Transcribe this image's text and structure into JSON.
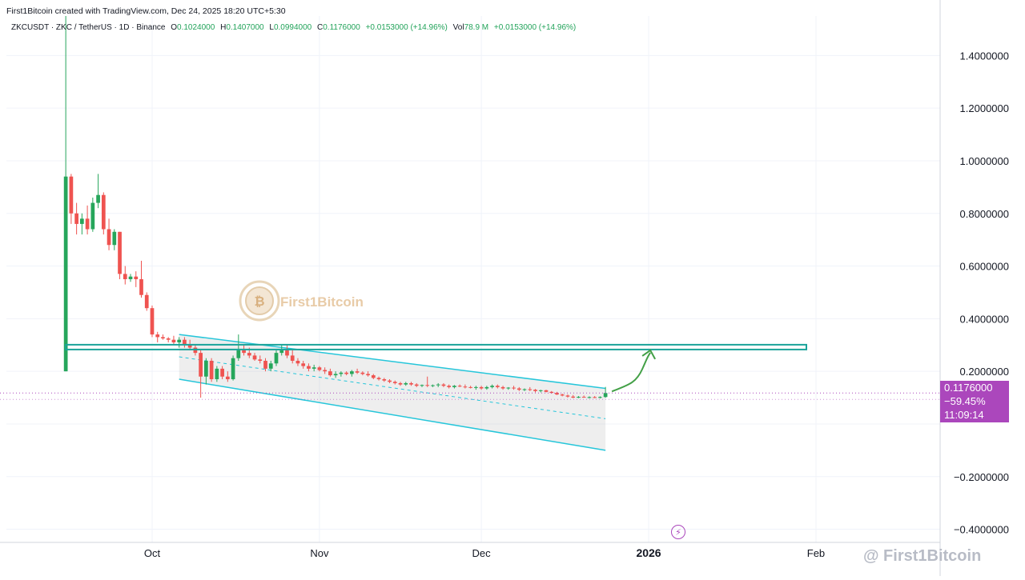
{
  "header": {
    "credit": "First1Bitcoin created with TradingView.com, Dec 24, 2025 18:20 UTC+5:30"
  },
  "symbol_bar": {
    "symbol": "ZKCUSDT · ZKC / TetherUS · 1D · Binance",
    "open_label": "O",
    "open": "0.1024000",
    "high_label": "H",
    "high": "0.1407000",
    "low_label": "L",
    "low": "0.0994000",
    "close_label": "C",
    "close": "0.1176000",
    "change": "+0.0153000 (+14.96%)",
    "vol_label": "Vol",
    "vol": "78.9 M",
    "vol_change": "+0.0153000 (+14.96%)"
  },
  "price_tag": {
    "price": "0.1176000",
    "pct": "−59.45%",
    "countdown": "11:09:14"
  },
  "watermark": {
    "logo_text": "First1Bitcoin",
    "footer": "@ First1Bitcoin"
  },
  "colors": {
    "up": "#26a65b",
    "down": "#ef5350",
    "channel": "#26c6da",
    "level": "#1aa39a",
    "arrow": "#43a047",
    "price_line": "#ab47bc"
  },
  "chart_data": {
    "type": "candlestick",
    "title": "ZKCUSDT · ZKC / TetherUS · 1D · Binance",
    "ylim": [
      -0.45,
      1.55
    ],
    "y_ticks": [
      1.4,
      1.2,
      1.0,
      0.8,
      0.6,
      0.4,
      0.2,
      -0.2,
      -0.4
    ],
    "y_tick_labels": [
      "1.4000000",
      "1.2000000",
      "1.0000000",
      "0.8000000",
      "0.6000000",
      "0.4000000",
      "0.2000000",
      "−0.2000000",
      "−0.4000000"
    ],
    "x_ticks": [
      "2025-10-01",
      "2025-11-01",
      "2025-12-01",
      "2026-01-01",
      "2026-02-01"
    ],
    "x_tick_labels": [
      "Oct",
      "Nov",
      "Dec",
      "2026",
      "Feb"
    ],
    "x_range": [
      "2025-09-04",
      "2026-02-24"
    ],
    "last_price": 0.1176,
    "support_level": 0.295,
    "channel": {
      "upper": [
        [
          "2025-10-06",
          0.34
        ],
        [
          "2025-12-24",
          0.135
        ]
      ],
      "lower": [
        [
          "2025-10-06",
          0.17
        ],
        [
          "2025-12-24",
          -0.1
        ]
      ],
      "mid": [
        [
          "2025-10-06",
          0.255
        ],
        [
          "2025-12-24",
          0.02
        ]
      ]
    },
    "candles": [
      {
        "t": "2025-09-15",
        "o": 0.2,
        "h": 1.55,
        "l": 0.2,
        "c": 0.94
      },
      {
        "t": "2025-09-16",
        "o": 0.94,
        "h": 0.95,
        "l": 0.76,
        "c": 0.8
      },
      {
        "t": "2025-09-17",
        "o": 0.8,
        "h": 0.84,
        "l": 0.72,
        "c": 0.76
      },
      {
        "t": "2025-09-18",
        "o": 0.76,
        "h": 0.8,
        "l": 0.72,
        "c": 0.78
      },
      {
        "t": "2025-09-19",
        "o": 0.78,
        "h": 0.83,
        "l": 0.72,
        "c": 0.74
      },
      {
        "t": "2025-09-20",
        "o": 0.74,
        "h": 0.86,
        "l": 0.73,
        "c": 0.84
      },
      {
        "t": "2025-09-21",
        "o": 0.84,
        "h": 0.95,
        "l": 0.82,
        "c": 0.87
      },
      {
        "t": "2025-09-22",
        "o": 0.87,
        "h": 0.88,
        "l": 0.72,
        "c": 0.74
      },
      {
        "t": "2025-09-23",
        "o": 0.74,
        "h": 0.78,
        "l": 0.66,
        "c": 0.68
      },
      {
        "t": "2025-09-24",
        "o": 0.68,
        "h": 0.74,
        "l": 0.66,
        "c": 0.73
      },
      {
        "t": "2025-09-25",
        "o": 0.73,
        "h": 0.73,
        "l": 0.55,
        "c": 0.57
      },
      {
        "t": "2025-09-26",
        "o": 0.57,
        "h": 0.6,
        "l": 0.53,
        "c": 0.55
      },
      {
        "t": "2025-09-27",
        "o": 0.55,
        "h": 0.57,
        "l": 0.54,
        "c": 0.56
      },
      {
        "t": "2025-09-28",
        "o": 0.56,
        "h": 0.58,
        "l": 0.52,
        "c": 0.55
      },
      {
        "t": "2025-09-29",
        "o": 0.55,
        "h": 0.62,
        "l": 0.48,
        "c": 0.49
      },
      {
        "t": "2025-09-30",
        "o": 0.49,
        "h": 0.5,
        "l": 0.43,
        "c": 0.44
      },
      {
        "t": "2025-10-01",
        "o": 0.44,
        "h": 0.45,
        "l": 0.33,
        "c": 0.34
      },
      {
        "t": "2025-10-02",
        "o": 0.34,
        "h": 0.35,
        "l": 0.31,
        "c": 0.33
      },
      {
        "t": "2025-10-03",
        "o": 0.33,
        "h": 0.34,
        "l": 0.32,
        "c": 0.325
      },
      {
        "t": "2025-10-04",
        "o": 0.325,
        "h": 0.33,
        "l": 0.31,
        "c": 0.32
      },
      {
        "t": "2025-10-05",
        "o": 0.32,
        "h": 0.335,
        "l": 0.3,
        "c": 0.31
      },
      {
        "t": "2025-10-06",
        "o": 0.31,
        "h": 0.33,
        "l": 0.29,
        "c": 0.32
      },
      {
        "t": "2025-10-07",
        "o": 0.32,
        "h": 0.33,
        "l": 0.29,
        "c": 0.3
      },
      {
        "t": "2025-10-08",
        "o": 0.3,
        "h": 0.32,
        "l": 0.28,
        "c": 0.29
      },
      {
        "t": "2025-10-09",
        "o": 0.29,
        "h": 0.3,
        "l": 0.26,
        "c": 0.27
      },
      {
        "t": "2025-10-10",
        "o": 0.27,
        "h": 0.28,
        "l": 0.1,
        "c": 0.18
      },
      {
        "t": "2025-10-11",
        "o": 0.18,
        "h": 0.25,
        "l": 0.15,
        "c": 0.24
      },
      {
        "t": "2025-10-12",
        "o": 0.24,
        "h": 0.25,
        "l": 0.16,
        "c": 0.17
      },
      {
        "t": "2025-10-13",
        "o": 0.17,
        "h": 0.22,
        "l": 0.16,
        "c": 0.21
      },
      {
        "t": "2025-10-14",
        "o": 0.21,
        "h": 0.22,
        "l": 0.17,
        "c": 0.18
      },
      {
        "t": "2025-10-15",
        "o": 0.18,
        "h": 0.2,
        "l": 0.16,
        "c": 0.17
      },
      {
        "t": "2025-10-16",
        "o": 0.17,
        "h": 0.26,
        "l": 0.165,
        "c": 0.25
      },
      {
        "t": "2025-10-17",
        "o": 0.25,
        "h": 0.34,
        "l": 0.24,
        "c": 0.28
      },
      {
        "t": "2025-10-18",
        "o": 0.28,
        "h": 0.3,
        "l": 0.26,
        "c": 0.27
      },
      {
        "t": "2025-10-19",
        "o": 0.27,
        "h": 0.29,
        "l": 0.25,
        "c": 0.26
      },
      {
        "t": "2025-10-20",
        "o": 0.26,
        "h": 0.27,
        "l": 0.24,
        "c": 0.245
      },
      {
        "t": "2025-10-21",
        "o": 0.245,
        "h": 0.26,
        "l": 0.23,
        "c": 0.24
      },
      {
        "t": "2025-10-22",
        "o": 0.24,
        "h": 0.25,
        "l": 0.2,
        "c": 0.21
      },
      {
        "t": "2025-10-23",
        "o": 0.21,
        "h": 0.24,
        "l": 0.2,
        "c": 0.23
      },
      {
        "t": "2025-10-24",
        "o": 0.23,
        "h": 0.28,
        "l": 0.22,
        "c": 0.27
      },
      {
        "t": "2025-10-25",
        "o": 0.27,
        "h": 0.3,
        "l": 0.26,
        "c": 0.28
      },
      {
        "t": "2025-10-26",
        "o": 0.28,
        "h": 0.3,
        "l": 0.25,
        "c": 0.26
      },
      {
        "t": "2025-10-27",
        "o": 0.26,
        "h": 0.28,
        "l": 0.23,
        "c": 0.24
      },
      {
        "t": "2025-10-28",
        "o": 0.24,
        "h": 0.25,
        "l": 0.22,
        "c": 0.23
      },
      {
        "t": "2025-10-29",
        "o": 0.23,
        "h": 0.24,
        "l": 0.21,
        "c": 0.22
      },
      {
        "t": "2025-10-30",
        "o": 0.22,
        "h": 0.23,
        "l": 0.2,
        "c": 0.21
      },
      {
        "t": "2025-10-31",
        "o": 0.21,
        "h": 0.225,
        "l": 0.2,
        "c": 0.215
      },
      {
        "t": "2025-11-01",
        "o": 0.215,
        "h": 0.22,
        "l": 0.2,
        "c": 0.205
      },
      {
        "t": "2025-11-02",
        "o": 0.205,
        "h": 0.215,
        "l": 0.19,
        "c": 0.2
      },
      {
        "t": "2025-11-03",
        "o": 0.2,
        "h": 0.21,
        "l": 0.18,
        "c": 0.185
      },
      {
        "t": "2025-11-04",
        "o": 0.185,
        "h": 0.2,
        "l": 0.175,
        "c": 0.19
      },
      {
        "t": "2025-11-05",
        "o": 0.19,
        "h": 0.2,
        "l": 0.18,
        "c": 0.195
      },
      {
        "t": "2025-11-06",
        "o": 0.195,
        "h": 0.2,
        "l": 0.185,
        "c": 0.19
      },
      {
        "t": "2025-11-07",
        "o": 0.19,
        "h": 0.205,
        "l": 0.18,
        "c": 0.2
      },
      {
        "t": "2025-11-08",
        "o": 0.2,
        "h": 0.21,
        "l": 0.19,
        "c": 0.195
      },
      {
        "t": "2025-11-09",
        "o": 0.195,
        "h": 0.2,
        "l": 0.185,
        "c": 0.19
      },
      {
        "t": "2025-11-10",
        "o": 0.19,
        "h": 0.2,
        "l": 0.18,
        "c": 0.185
      },
      {
        "t": "2025-11-11",
        "o": 0.185,
        "h": 0.19,
        "l": 0.17,
        "c": 0.175
      },
      {
        "t": "2025-11-12",
        "o": 0.175,
        "h": 0.18,
        "l": 0.165,
        "c": 0.17
      },
      {
        "t": "2025-11-13",
        "o": 0.17,
        "h": 0.175,
        "l": 0.16,
        "c": 0.165
      },
      {
        "t": "2025-11-14",
        "o": 0.165,
        "h": 0.17,
        "l": 0.155,
        "c": 0.16
      },
      {
        "t": "2025-11-15",
        "o": 0.16,
        "h": 0.165,
        "l": 0.15,
        "c": 0.155
      },
      {
        "t": "2025-11-16",
        "o": 0.155,
        "h": 0.16,
        "l": 0.145,
        "c": 0.15
      },
      {
        "t": "2025-11-17",
        "o": 0.15,
        "h": 0.16,
        "l": 0.145,
        "c": 0.155
      },
      {
        "t": "2025-11-18",
        "o": 0.155,
        "h": 0.16,
        "l": 0.145,
        "c": 0.15
      },
      {
        "t": "2025-11-19",
        "o": 0.15,
        "h": 0.155,
        "l": 0.14,
        "c": 0.145
      },
      {
        "t": "2025-11-20",
        "o": 0.145,
        "h": 0.15,
        "l": 0.14,
        "c": 0.148
      },
      {
        "t": "2025-11-21",
        "o": 0.148,
        "h": 0.18,
        "l": 0.14,
        "c": 0.145
      },
      {
        "t": "2025-11-22",
        "o": 0.145,
        "h": 0.15,
        "l": 0.14,
        "c": 0.147
      },
      {
        "t": "2025-11-23",
        "o": 0.147,
        "h": 0.155,
        "l": 0.14,
        "c": 0.15
      },
      {
        "t": "2025-11-24",
        "o": 0.15,
        "h": 0.155,
        "l": 0.14,
        "c": 0.145
      },
      {
        "t": "2025-11-25",
        "o": 0.145,
        "h": 0.15,
        "l": 0.135,
        "c": 0.14
      },
      {
        "t": "2025-11-26",
        "o": 0.14,
        "h": 0.148,
        "l": 0.135,
        "c": 0.145
      },
      {
        "t": "2025-11-27",
        "o": 0.145,
        "h": 0.15,
        "l": 0.14,
        "c": 0.142
      },
      {
        "t": "2025-11-28",
        "o": 0.142,
        "h": 0.15,
        "l": 0.135,
        "c": 0.14
      },
      {
        "t": "2025-11-29",
        "o": 0.14,
        "h": 0.145,
        "l": 0.135,
        "c": 0.138
      },
      {
        "t": "2025-11-30",
        "o": 0.138,
        "h": 0.145,
        "l": 0.13,
        "c": 0.14
      },
      {
        "t": "2025-12-01",
        "o": 0.14,
        "h": 0.145,
        "l": 0.13,
        "c": 0.135
      },
      {
        "t": "2025-12-02",
        "o": 0.135,
        "h": 0.145,
        "l": 0.13,
        "c": 0.14
      },
      {
        "t": "2025-12-03",
        "o": 0.14,
        "h": 0.15,
        "l": 0.135,
        "c": 0.145
      },
      {
        "t": "2025-12-04",
        "o": 0.145,
        "h": 0.15,
        "l": 0.135,
        "c": 0.14
      },
      {
        "t": "2025-12-05",
        "o": 0.14,
        "h": 0.145,
        "l": 0.13,
        "c": 0.135
      },
      {
        "t": "2025-12-06",
        "o": 0.135,
        "h": 0.14,
        "l": 0.13,
        "c": 0.138
      },
      {
        "t": "2025-12-07",
        "o": 0.138,
        "h": 0.145,
        "l": 0.13,
        "c": 0.135
      },
      {
        "t": "2025-12-08",
        "o": 0.135,
        "h": 0.14,
        "l": 0.125,
        "c": 0.13
      },
      {
        "t": "2025-12-09",
        "o": 0.13,
        "h": 0.135,
        "l": 0.125,
        "c": 0.132
      },
      {
        "t": "2025-12-10",
        "o": 0.132,
        "h": 0.14,
        "l": 0.125,
        "c": 0.13
      },
      {
        "t": "2025-12-11",
        "o": 0.13,
        "h": 0.133,
        "l": 0.12,
        "c": 0.125
      },
      {
        "t": "2025-12-12",
        "o": 0.125,
        "h": 0.13,
        "l": 0.12,
        "c": 0.128
      },
      {
        "t": "2025-12-13",
        "o": 0.128,
        "h": 0.13,
        "l": 0.12,
        "c": 0.122
      },
      {
        "t": "2025-12-14",
        "o": 0.122,
        "h": 0.125,
        "l": 0.115,
        "c": 0.118
      },
      {
        "t": "2025-12-15",
        "o": 0.118,
        "h": 0.122,
        "l": 0.11,
        "c": 0.112
      },
      {
        "t": "2025-12-16",
        "o": 0.112,
        "h": 0.115,
        "l": 0.105,
        "c": 0.108
      },
      {
        "t": "2025-12-17",
        "o": 0.108,
        "h": 0.112,
        "l": 0.1,
        "c": 0.104
      },
      {
        "t": "2025-12-18",
        "o": 0.104,
        "h": 0.11,
        "l": 0.098,
        "c": 0.1
      },
      {
        "t": "2025-12-19",
        "o": 0.1,
        "h": 0.106,
        "l": 0.098,
        "c": 0.103
      },
      {
        "t": "2025-12-20",
        "o": 0.103,
        "h": 0.108,
        "l": 0.1,
        "c": 0.101
      },
      {
        "t": "2025-12-21",
        "o": 0.101,
        "h": 0.105,
        "l": 0.097,
        "c": 0.102
      },
      {
        "t": "2025-12-22",
        "o": 0.102,
        "h": 0.106,
        "l": 0.098,
        "c": 0.1
      },
      {
        "t": "2025-12-23",
        "o": 0.1,
        "h": 0.105,
        "l": 0.097,
        "c": 0.1024
      },
      {
        "t": "2025-12-24",
        "o": 0.1024,
        "h": 0.1407,
        "l": 0.0994,
        "c": 0.1176
      }
    ]
  }
}
